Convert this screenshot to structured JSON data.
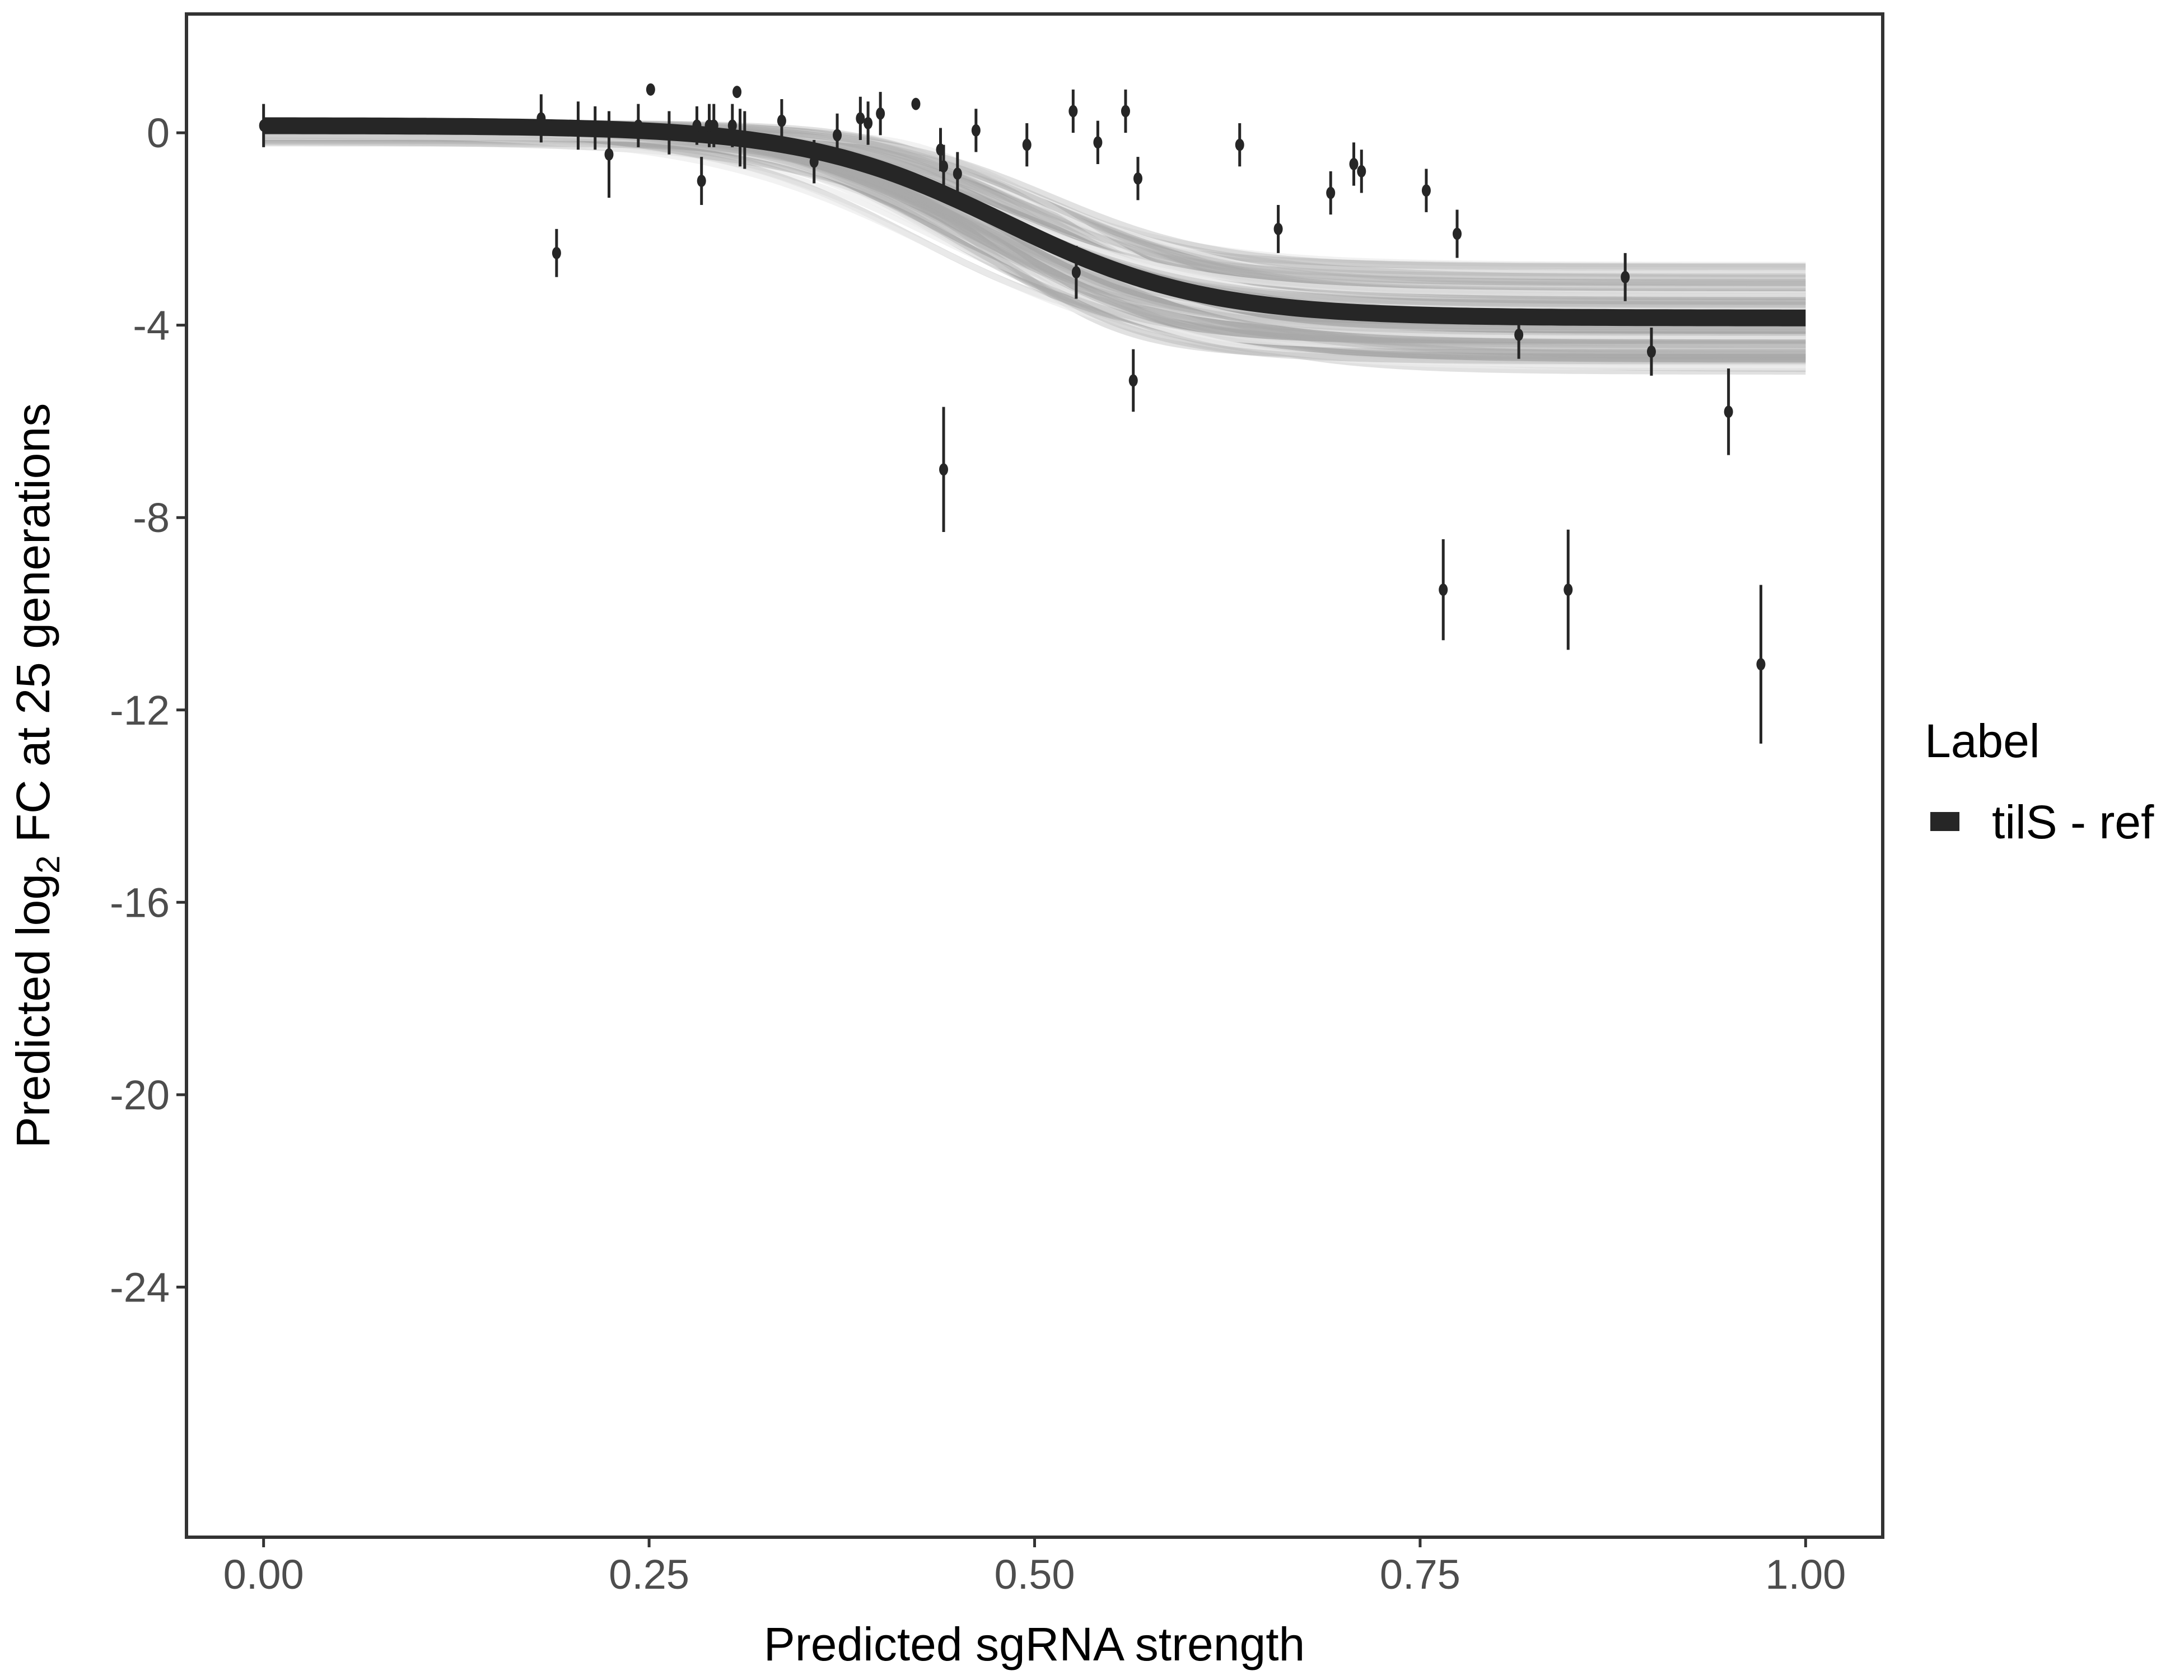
{
  "chart_data": {
    "type": "scatter",
    "title": "",
    "xlabel": "Predicted sgRNA strength",
    "ylabel_prefix": "Predicted  log",
    "ylabel_sub": "2",
    "ylabel_suffix": " FC at 25 generations",
    "xlim": [
      -0.05,
      1.05
    ],
    "ylim": [
      -29.2,
      2.47
    ],
    "xticks": [
      0,
      0.25,
      0.5,
      0.75,
      1
    ],
    "xtick_labels": [
      "0.00",
      "0.25",
      "0.50",
      "0.75",
      "1.00"
    ],
    "yticks": [
      0,
      -4,
      -8,
      -12,
      -16,
      -20,
      -24
    ],
    "ytick_labels": [
      "0",
      "-4",
      "-8",
      "-12",
      "-16",
      "-20",
      "-24"
    ],
    "grid": false,
    "legend": {
      "title": "Label",
      "placement": "right",
      "entries": [
        {
          "label": "tilS - ref",
          "color": "#262626"
        }
      ]
    },
    "fit_curve": {
      "type": "logistic",
      "upper": 0.15,
      "drop": 4.0,
      "midpoint": 0.48,
      "scale": 0.065,
      "color": "#262626"
    },
    "posterior_draws_color": "#a9a9a9",
    "points": [
      {
        "x": 0.0,
        "y": 0.15,
        "err": 0.45
      },
      {
        "x": 0.18,
        "y": 0.3,
        "err": 0.5
      },
      {
        "x": 0.19,
        "y": -2.5,
        "err": 0.5
      },
      {
        "x": 0.204,
        "y": 0.15,
        "err": 0.5
      },
      {
        "x": 0.215,
        "y": 0.1,
        "err": 0.45
      },
      {
        "x": 0.224,
        "y": -0.45,
        "err": 0.9
      },
      {
        "x": 0.243,
        "y": 0.15,
        "err": 0.45
      },
      {
        "x": 0.251,
        "y": 0.9,
        "err": 0
      },
      {
        "x": 0.263,
        "y": 0.0,
        "err": 0.45
      },
      {
        "x": 0.281,
        "y": 0.15,
        "err": 0.4
      },
      {
        "x": 0.284,
        "y": -1.0,
        "err": 0.5
      },
      {
        "x": 0.289,
        "y": 0.15,
        "err": 0.45
      },
      {
        "x": 0.292,
        "y": 0.15,
        "err": 0.45
      },
      {
        "x": 0.304,
        "y": 0.15,
        "err": 0.45
      },
      {
        "x": 0.307,
        "y": 0.85,
        "err": 0
      },
      {
        "x": 0.309,
        "y": -0.1,
        "err": 0.6
      },
      {
        "x": 0.312,
        "y": -0.15,
        "err": 0.6
      },
      {
        "x": 0.336,
        "y": 0.25,
        "err": 0.45
      },
      {
        "x": 0.357,
        "y": -0.6,
        "err": 0.45
      },
      {
        "x": 0.372,
        "y": -0.05,
        "err": 0.45
      },
      {
        "x": 0.387,
        "y": 0.3,
        "err": 0.45
      },
      {
        "x": 0.392,
        "y": 0.2,
        "err": 0.45
      },
      {
        "x": 0.4,
        "y": 0.4,
        "err": 0.45
      },
      {
        "x": 0.423,
        "y": 0.6,
        "err": 0
      },
      {
        "x": 0.439,
        "y": -0.35,
        "err": 0.45
      },
      {
        "x": 0.441,
        "y": -0.7,
        "err": 0.45
      },
      {
        "x": 0.441,
        "y": -7.0,
        "err": 1.3
      },
      {
        "x": 0.45,
        "y": -0.85,
        "err": 0.45
      },
      {
        "x": 0.462,
        "y": 0.05,
        "err": 0.45
      },
      {
        "x": 0.495,
        "y": -0.25,
        "err": 0.45
      },
      {
        "x": 0.525,
        "y": 0.45,
        "err": 0.45
      },
      {
        "x": 0.527,
        "y": -2.9,
        "err": 0.55
      },
      {
        "x": 0.541,
        "y": -0.2,
        "err": 0.45
      },
      {
        "x": 0.559,
        "y": 0.45,
        "err": 0.45
      },
      {
        "x": 0.564,
        "y": -5.15,
        "err": 0.65
      },
      {
        "x": 0.567,
        "y": -0.95,
        "err": 0.45
      },
      {
        "x": 0.633,
        "y": -0.25,
        "err": 0.45
      },
      {
        "x": 0.658,
        "y": -2.0,
        "err": 0.5
      },
      {
        "x": 0.692,
        "y": -1.25,
        "err": 0.45
      },
      {
        "x": 0.707,
        "y": -0.65,
        "err": 0.45
      },
      {
        "x": 0.712,
        "y": -0.8,
        "err": 0.45
      },
      {
        "x": 0.754,
        "y": -1.2,
        "err": 0.45
      },
      {
        "x": 0.765,
        "y": -9.5,
        "err": 1.05
      },
      {
        "x": 0.774,
        "y": -2.1,
        "err": 0.5
      },
      {
        "x": 0.814,
        "y": -4.2,
        "err": 0.5
      },
      {
        "x": 0.846,
        "y": -9.5,
        "err": 1.25
      },
      {
        "x": 0.883,
        "y": -3.0,
        "err": 0.5
      },
      {
        "x": 0.9,
        "y": -4.55,
        "err": 0.5
      },
      {
        "x": 0.95,
        "y": -5.8,
        "err": 0.9
      },
      {
        "x": 0.971,
        "y": -11.05,
        "err": 1.65
      }
    ]
  }
}
